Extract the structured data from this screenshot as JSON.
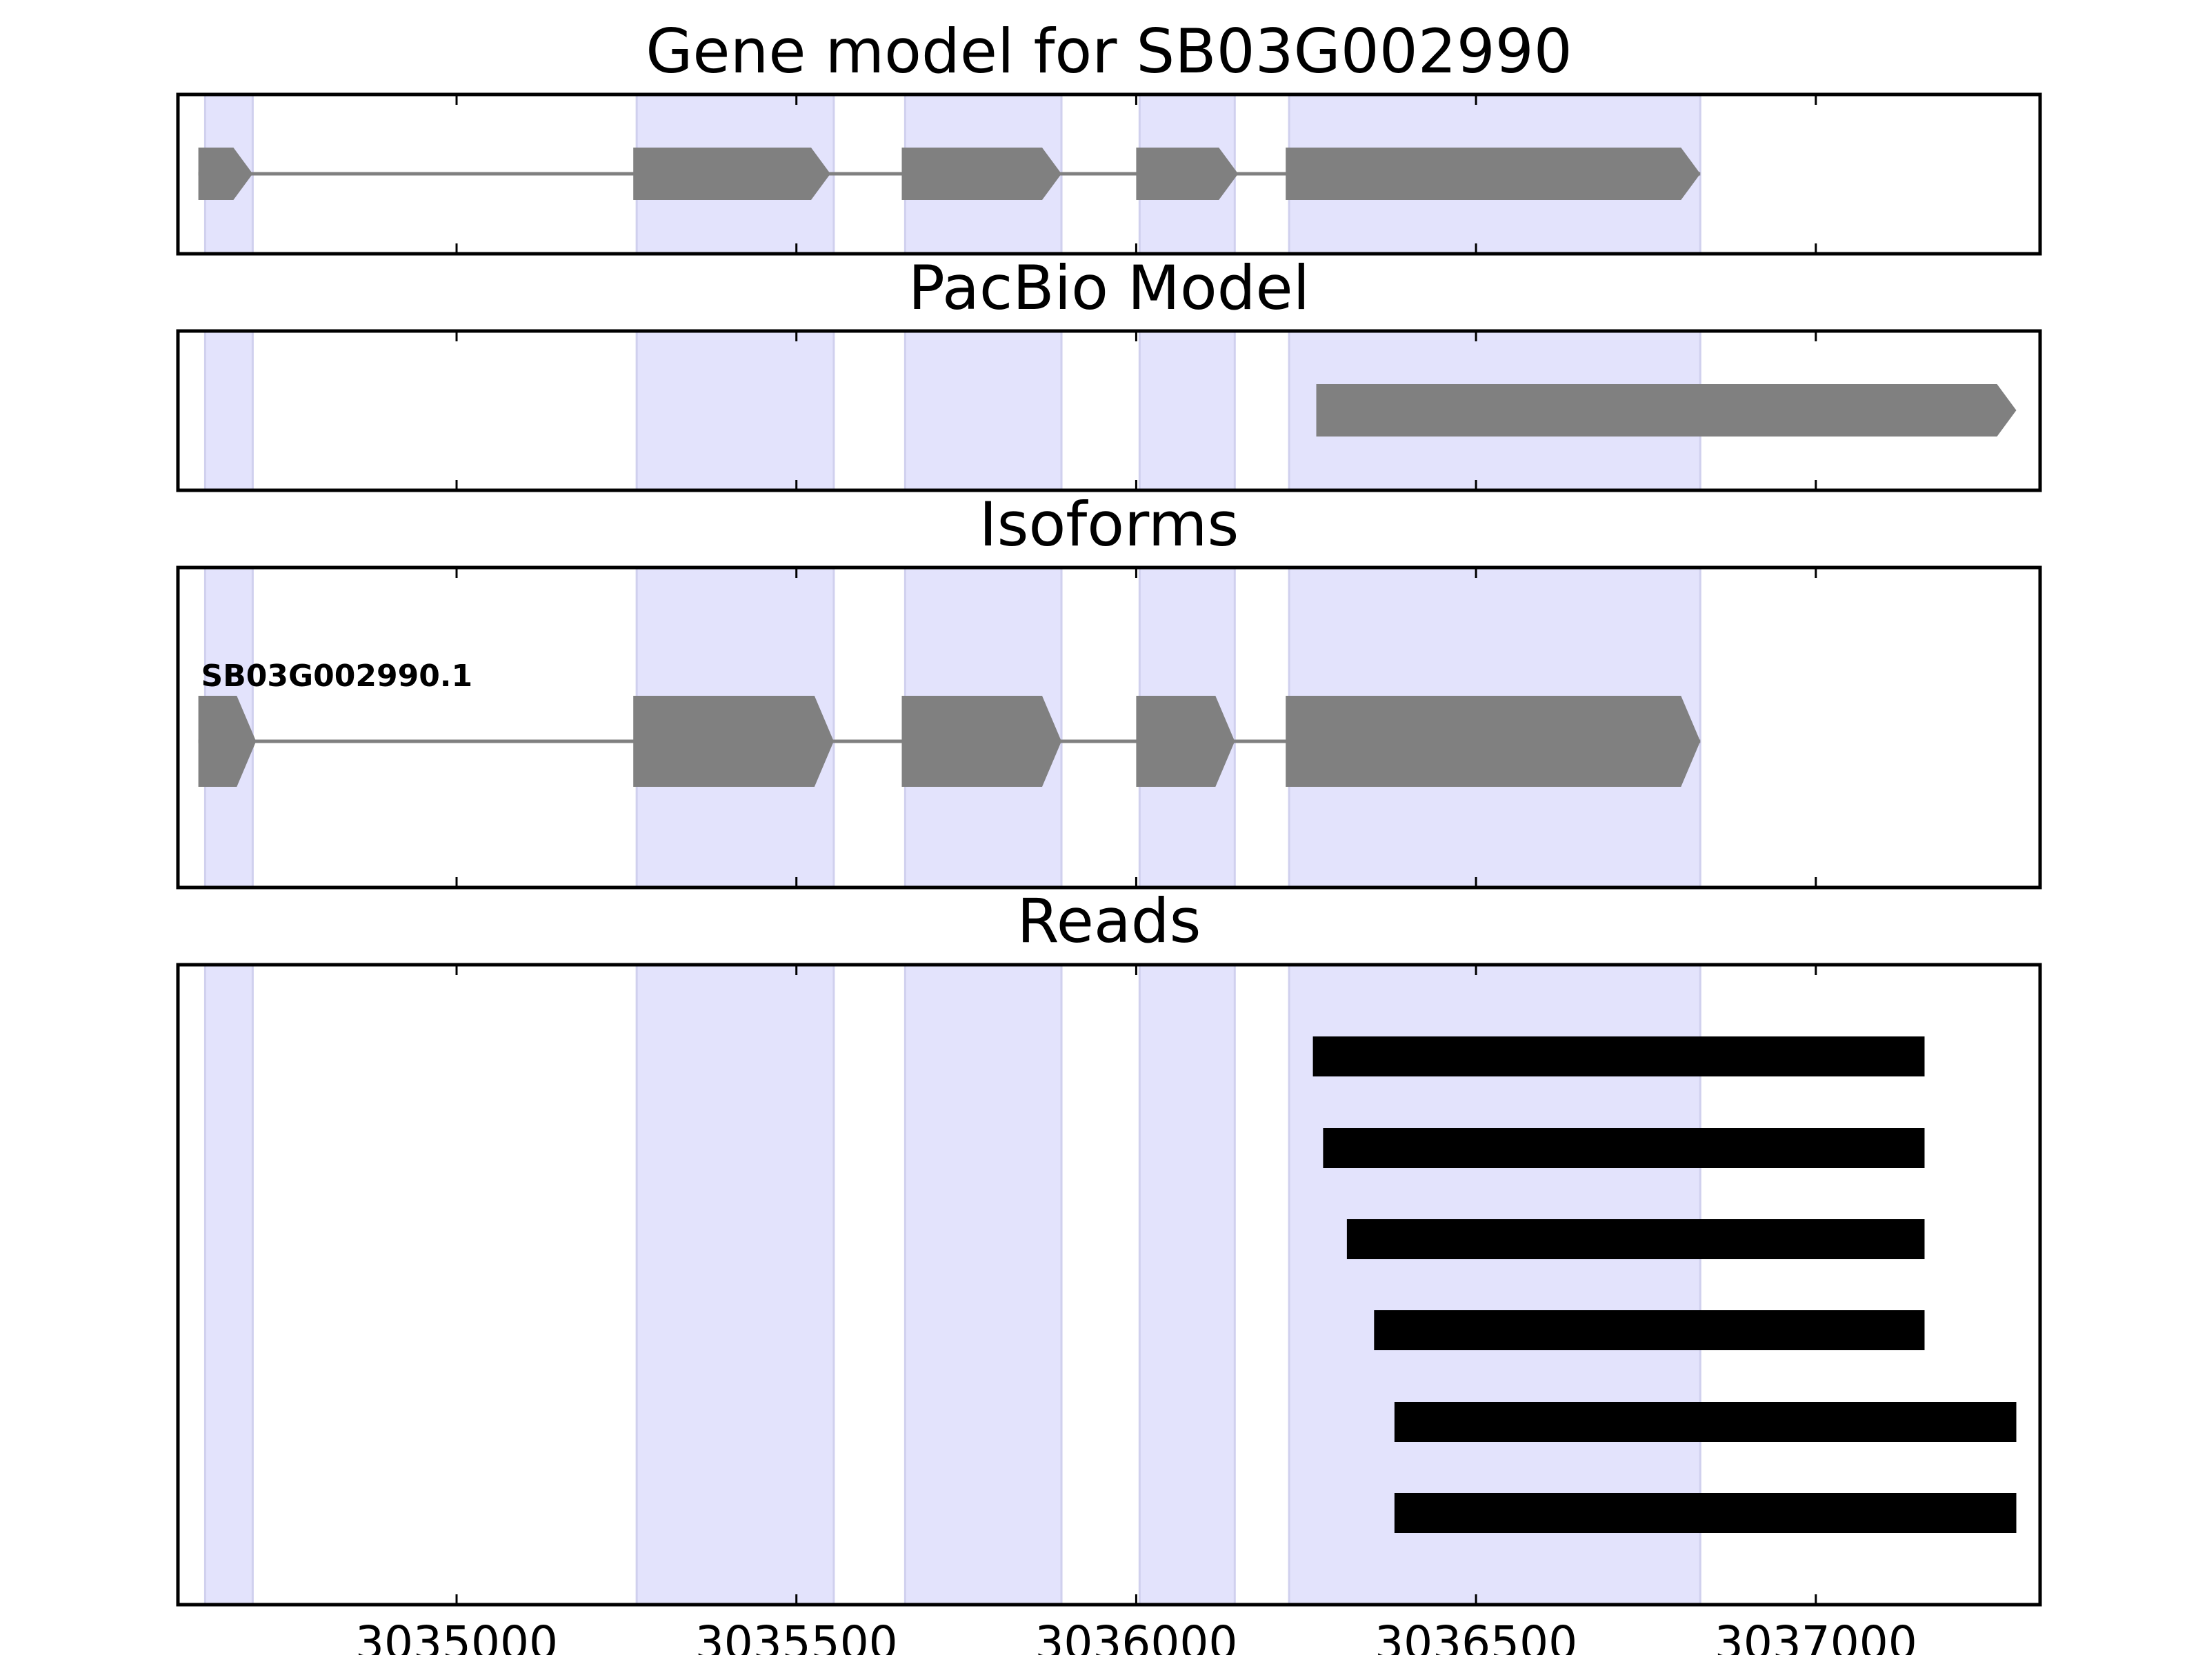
{
  "chart_data": [
    {
      "type": "gene-track",
      "title": "Gene model for SB03G002990",
      "xlim": [
        3034590,
        3037330
      ],
      "xticks": [
        3035000,
        3035500,
        3036000,
        3036500,
        3037000
      ],
      "features": [
        {
          "start": 3034620,
          "end": 3034700
        },
        {
          "start": 3035260,
          "end": 3035550
        },
        {
          "start": 3035655,
          "end": 3035890
        },
        {
          "start": 3036000,
          "end": 3036150
        },
        {
          "start": 3036220,
          "end": 3036830
        }
      ],
      "strand": "+",
      "color": "#808080"
    },
    {
      "type": "gene-track",
      "title": "PacBio Model",
      "xlim": [
        3034590,
        3037330
      ],
      "xticks": [
        3035000,
        3035500,
        3036000,
        3036500,
        3037000
      ],
      "features": [
        {
          "start": 3036265,
          "end": 3037295
        }
      ],
      "strand": "+",
      "color": "#808080"
    },
    {
      "type": "gene-track",
      "title": "Isoforms",
      "xlim": [
        3034590,
        3037330
      ],
      "xticks": [
        3035000,
        3035500,
        3036000,
        3036500,
        3037000
      ],
      "isoforms": [
        {
          "name": "SB03G002990.1",
          "features": [
            {
              "start": 3034620,
              "end": 3034705
            },
            {
              "start": 3035260,
              "end": 3035555
            },
            {
              "start": 3035655,
              "end": 3035890
            },
            {
              "start": 3036000,
              "end": 3036145
            },
            {
              "start": 3036220,
              "end": 3036830
            }
          ],
          "strand": "+"
        }
      ],
      "color": "#808080"
    },
    {
      "type": "read-track",
      "title": "Reads",
      "xlim": [
        3034590,
        3037330
      ],
      "xticks": [
        3035000,
        3035500,
        3036000,
        3036500,
        3037000
      ],
      "reads": [
        {
          "start": 3036260,
          "end": 3037160
        },
        {
          "start": 3036275,
          "end": 3037160
        },
        {
          "start": 3036310,
          "end": 3037160
        },
        {
          "start": 3036350,
          "end": 3037160
        },
        {
          "start": 3036380,
          "end": 3037295
        },
        {
          "start": 3036380,
          "end": 3037295
        }
      ],
      "color": "#000000"
    }
  ],
  "shaded_regions": [
    {
      "start": 3034630,
      "end": 3034700
    },
    {
      "start": 3035265,
      "end": 3035555
    },
    {
      "start": 3035660,
      "end": 3035890
    },
    {
      "start": 3036005,
      "end": 3036145
    },
    {
      "start": 3036225,
      "end": 3036830
    }
  ],
  "colors": {
    "shade": "#e3e3fc",
    "shade_edge": "#d0d0ee",
    "feature": "#808080",
    "read": "#000000",
    "axis": "#000000"
  }
}
